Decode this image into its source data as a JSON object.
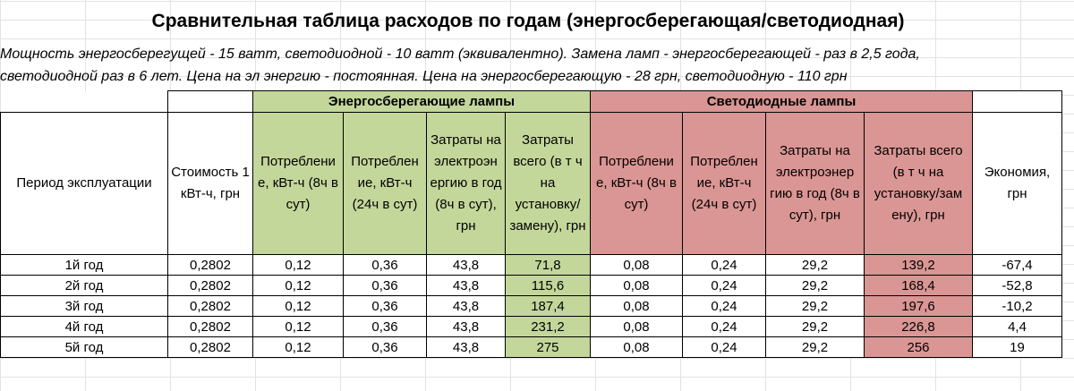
{
  "title": "Сравнительная таблица расходов по годам (энергосберегающая/светодиодная)",
  "notes": [
    "Мощность энергосберегущей - 15 ватт, светодиодной - 10 ватт (эквивалентно). Замена ламп - энергосберегающей - раз в 2,5 года,",
    "светодиодной раз в 6 лет. Цена на эл энергию - постоянная. Цена на энергосберегающую - 28 грн, светодиодную - 110 грн"
  ],
  "groups": {
    "energy_saving": "Энергосберегающие лампы",
    "led": "Светодиодные лампы"
  },
  "headers": {
    "period": "Период эксплуатации",
    "price": "Стоимость 1 кВт-ч, грн",
    "es_cons8": "Потреблени е, кВт-ч (8ч в сут)",
    "es_cons24": "Потреблен ие, кВт-ч (24ч в сут)",
    "es_cost_energy": "Затраты на электроэн ергию в год (8ч в сут), грн",
    "es_cost_total": "Затраты всего (в т ч на установку/ замену), грн",
    "led_cons8": "Потреблени е, кВт-ч (8ч в сут)",
    "led_cons24": "Потреблен ие, кВт-ч (24ч в сут)",
    "led_cost_energy": "Затраты на электроэнер гию в год (8ч в сут), грн",
    "led_cost_total": "Затраты всего (в т ч на установку/зам ену), грн",
    "savings": "Экономия, грн"
  },
  "rows": [
    {
      "period": "1й год",
      "price": "0,2802",
      "es_cons8": "0,12",
      "es_cons24": "0,36",
      "es_cost_energy": "43,8",
      "es_cost_total": "71,8",
      "led_cons8": "0,08",
      "led_cons24": "0,24",
      "led_cost_energy": "29,2",
      "led_cost_total": "139,2",
      "savings": "-67,4"
    },
    {
      "period": "2й год",
      "price": "0,2802",
      "es_cons8": "0,12",
      "es_cons24": "0,36",
      "es_cost_energy": "43,8",
      "es_cost_total": "115,6",
      "led_cons8": "0,08",
      "led_cons24": "0,24",
      "led_cost_energy": "29,2",
      "led_cost_total": "168,4",
      "savings": "-52,8"
    },
    {
      "period": "3й год",
      "price": "0,2802",
      "es_cons8": "0,12",
      "es_cons24": "0,36",
      "es_cost_energy": "43,8",
      "es_cost_total": "187,4",
      "led_cons8": "0,08",
      "led_cons24": "0,24",
      "led_cost_energy": "29,2",
      "led_cost_total": "197,6",
      "savings": "-10,2"
    },
    {
      "period": "4й год",
      "price": "0,2802",
      "es_cons8": "0,12",
      "es_cons24": "0,36",
      "es_cost_energy": "43,8",
      "es_cost_total": "231,2",
      "led_cons8": "0,08",
      "led_cons24": "0,24",
      "led_cost_energy": "29,2",
      "led_cost_total": "226,8",
      "savings": "4,4"
    },
    {
      "period": "5й год",
      "price": "0,2802",
      "es_cons8": "0,12",
      "es_cons24": "0,36",
      "es_cost_energy": "43,8",
      "es_cost_total": "275",
      "led_cons8": "0,08",
      "led_cons24": "0,24",
      "led_cost_energy": "29,2",
      "led_cost_total": "256",
      "savings": "19"
    }
  ],
  "colors": {
    "energy_saving_fill": "#c4d79b",
    "led_fill": "#da9694"
  }
}
